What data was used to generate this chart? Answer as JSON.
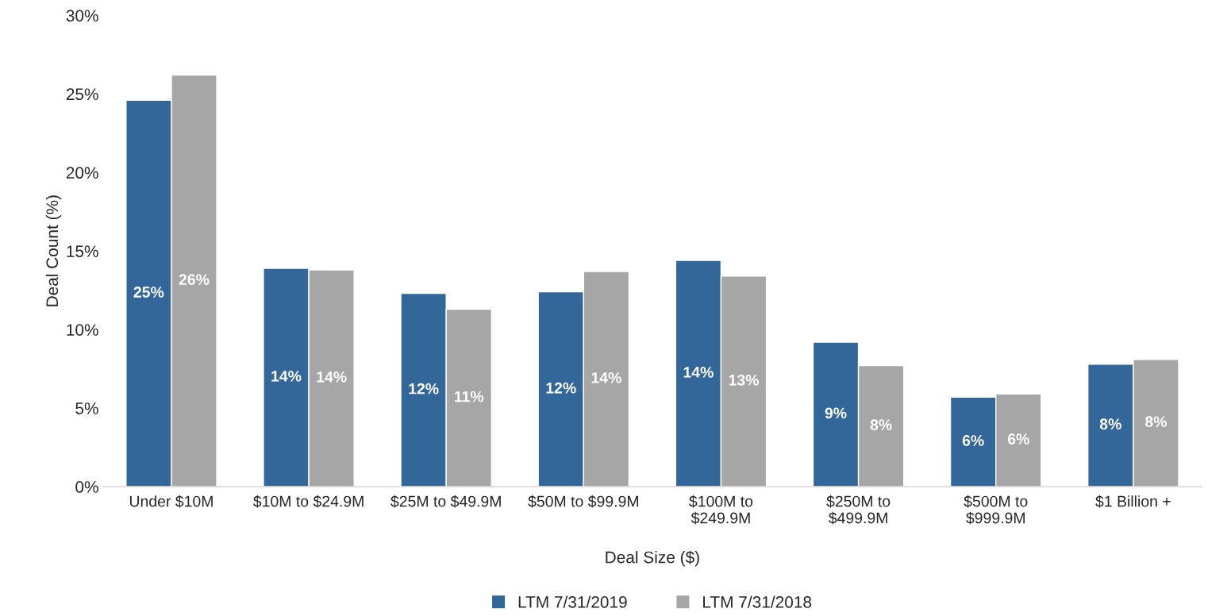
{
  "chart_data": {
    "type": "bar",
    "xlabel": "Deal Size ($)",
    "ylabel": "Deal Count (%)",
    "categories": [
      "Under $10M",
      "$10M to $24.9M",
      "$25M to $49.9M",
      "$50M to $99.9M",
      "$100M to\n$249.9M",
      "$250M to\n$499.9M",
      "$500M to\n$999.9M",
      "$1 Billion +"
    ],
    "series": [
      {
        "name": "LTM 7/31/2019",
        "color": "#336699",
        "values": [
          24.6,
          13.9,
          12.3,
          12.4,
          14.4,
          9.2,
          5.7,
          7.8
        ],
        "value_labels": [
          "25%",
          "14%",
          "12%",
          "12%",
          "14%",
          "9%",
          "6%",
          "8%"
        ]
      },
      {
        "name": "LTM 7/31/2018",
        "color": "#a6a6a6",
        "values": [
          26.2,
          13.8,
          11.3,
          13.7,
          13.4,
          7.7,
          5.9,
          8.1
        ],
        "value_labels": [
          "26%",
          "14%",
          "11%",
          "14%",
          "13%",
          "8%",
          "6%",
          "8%"
        ]
      }
    ],
    "ylim": [
      0,
      30
    ],
    "yticks": [
      {
        "value": 0,
        "label": "0%"
      },
      {
        "value": 5,
        "label": "5%"
      },
      {
        "value": 10,
        "label": "10%"
      },
      {
        "value": 15,
        "label": "15%"
      },
      {
        "value": 20,
        "label": "20%"
      },
      {
        "value": 25,
        "label": "25%"
      },
      {
        "value": 30,
        "label": "30%"
      }
    ],
    "grid": false,
    "legend": "bottom"
  }
}
